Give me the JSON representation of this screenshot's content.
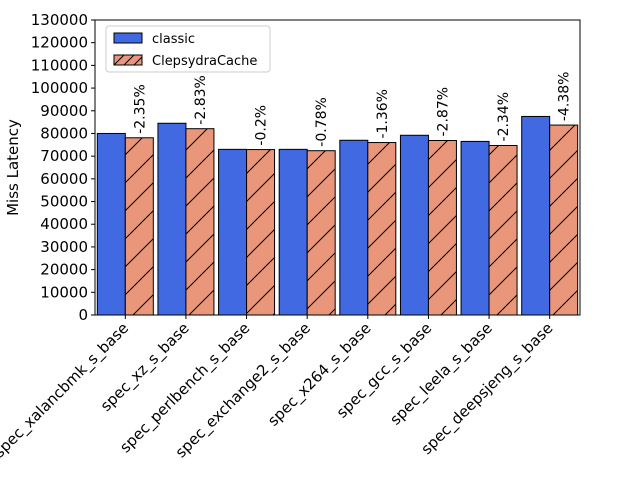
{
  "chart_data": {
    "type": "bar",
    "ylabel": "Miss Latency",
    "ylim": [
      0,
      130000
    ],
    "yticks": [
      0,
      10000,
      20000,
      30000,
      40000,
      50000,
      60000,
      70000,
      80000,
      90000,
      100000,
      110000,
      120000,
      130000
    ],
    "grid": false,
    "legend_position": "top-left",
    "categories": [
      "spec_xalancbmk_s_base",
      "spec_xz_s_base",
      "spec_perlbench_s_base",
      "spec_exchange2_s_base",
      "spec_x264_s_base",
      "spec_gcc_s_base",
      "spec_leela_s_base",
      "spec_deepsjeng_s_base"
    ],
    "series": [
      {
        "name": "classic",
        "color": "#4169e1",
        "hatch": "none",
        "values": [
          80000,
          84500,
          73000,
          73000,
          77000,
          79200,
          76500,
          87500
        ]
      },
      {
        "name": "ClepsydraCache",
        "color": "#e9967a",
        "hatch": "diagonal",
        "values": [
          78100,
          82100,
          72900,
          72400,
          76000,
          76900,
          74700,
          83700
        ]
      }
    ],
    "annotations": [
      "-2.35%",
      "-2.83%",
      "-0.2%",
      "-0.78%",
      "-1.36%",
      "-2.87%",
      "-2.34%",
      "-4.38%"
    ]
  }
}
